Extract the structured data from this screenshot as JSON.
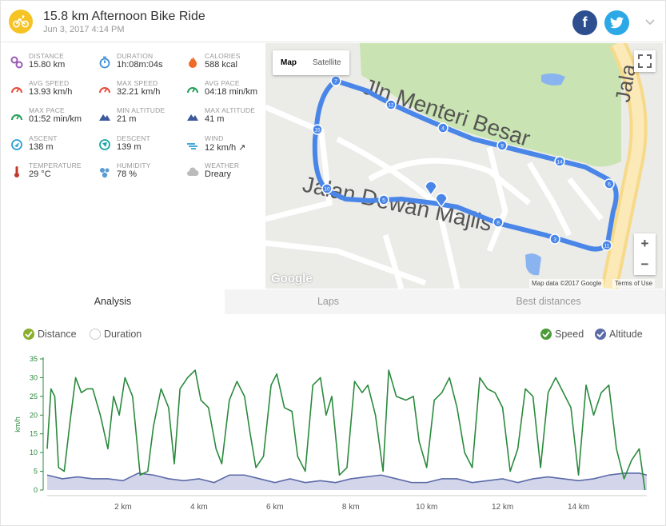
{
  "header": {
    "title": "15.8 km Afternoon Bike Ride",
    "subtitle": "Jun 3, 2017 4:14 PM",
    "facebook_label": "f"
  },
  "stats": [
    {
      "label": "DISTANCE",
      "value": "15.80 km",
      "icon": "distance-icon",
      "color": "#9b59b6"
    },
    {
      "label": "DURATION",
      "value": "1h:08m:04s",
      "icon": "stopwatch-icon",
      "color": "#3b8dd8"
    },
    {
      "label": "CALORIES",
      "value": "588 kcal",
      "icon": "flame-icon",
      "color": "#f06a2a"
    },
    {
      "label": "AVG SPEED",
      "value": "13.93 km/h",
      "icon": "speedometer-icon",
      "color": "#e74c3c"
    },
    {
      "label": "MAX SPEED",
      "value": "32.21 km/h",
      "icon": "speedometer-icon",
      "color": "#e74c3c"
    },
    {
      "label": "AVG PACE",
      "value": "04:18 min/km",
      "icon": "gauge-icon",
      "color": "#27a05a"
    },
    {
      "label": "MAX PACE",
      "value": "01:52 min/km",
      "icon": "gauge-icon",
      "color": "#27a05a"
    },
    {
      "label": "MIN ALTITUDE",
      "value": "21 m",
      "icon": "mountain-icon",
      "color": "#3c5a9a"
    },
    {
      "label": "MAX ALTITUDE",
      "value": "41 m",
      "icon": "mountain-icon",
      "color": "#3c5a9a"
    },
    {
      "label": "ASCENT",
      "value": "138 m",
      "icon": "compass-up-icon",
      "color": "#2a9fd6"
    },
    {
      "label": "DESCENT",
      "value": "139 m",
      "icon": "compass-down-icon",
      "color": "#1aa5a5"
    },
    {
      "label": "WIND",
      "value": "12 km/h ↗",
      "icon": "wind-icon",
      "color": "#2a9fd6"
    },
    {
      "label": "TEMPERATURE",
      "value": "29 °C",
      "icon": "thermometer-icon",
      "color": "#c0392b"
    },
    {
      "label": "HUMIDITY",
      "value": "78 %",
      "icon": "droplets-icon",
      "color": "#5b9bd5"
    },
    {
      "label": "WEATHER",
      "value": "Dreary",
      "icon": "cloud-icon",
      "color": "#bbbbbb"
    }
  ],
  "map": {
    "map_label": "Map",
    "satellite_label": "Satellite",
    "google_label": "Google",
    "map_data": "Map data ©2017 Google",
    "terms": "Terms of Use",
    "zoom_in": "+",
    "zoom_out": "−",
    "street_1": "Jln Menteri Besar",
    "street_2": "Jalan Dewan Majlis",
    "street_3": "Jala",
    "markers": [
      "7",
      "12",
      "4",
      "9",
      "14",
      "6",
      "11",
      "3",
      "8",
      "5",
      "10",
      "15"
    ]
  },
  "tabs": [
    {
      "label": "Analysis",
      "active": true
    },
    {
      "label": "Laps",
      "active": false
    },
    {
      "label": "Best distances",
      "active": false
    }
  ],
  "chart_toggles": {
    "distance": "Distance",
    "duration": "Duration",
    "speed": "Speed",
    "altitude": "Altitude"
  },
  "chart_data": {
    "type": "line",
    "ylabel": "km/h",
    "xlabel": "",
    "ylim": [
      0,
      35
    ],
    "xlim": [
      0,
      15.8
    ],
    "yticks": [
      0,
      5,
      10,
      15,
      20,
      25,
      30,
      35
    ],
    "xticks": [
      2,
      4,
      6,
      8,
      10,
      12,
      14
    ],
    "xtick_suffix": " km",
    "colors": {
      "speed": "#2a8a3c",
      "altitude_line": "#5b6aa8",
      "altitude_fill": "#d3d6ea"
    },
    "series": [
      {
        "name": "Speed",
        "x": [
          0,
          0.1,
          0.2,
          0.3,
          0.45,
          0.6,
          0.75,
          0.9,
          1.05,
          1.2,
          1.4,
          1.6,
          1.75,
          1.9,
          2.05,
          2.25,
          2.45,
          2.65,
          2.8,
          3.0,
          3.2,
          3.35,
          3.5,
          3.7,
          3.9,
          4.05,
          4.25,
          4.45,
          4.6,
          4.8,
          5.0,
          5.2,
          5.35,
          5.5,
          5.7,
          5.9,
          6.05,
          6.25,
          6.45,
          6.6,
          6.8,
          7.0,
          7.2,
          7.35,
          7.5,
          7.7,
          7.9,
          8.1,
          8.3,
          8.45,
          8.65,
          8.85,
          9.0,
          9.2,
          9.45,
          9.65,
          9.8,
          10.0,
          10.2,
          10.4,
          10.6,
          10.8,
          11.0,
          11.2,
          11.4,
          11.6,
          11.8,
          12.0,
          12.2,
          12.4,
          12.6,
          12.8,
          13.0,
          13.2,
          13.4,
          13.6,
          13.8,
          14.0,
          14.2,
          14.4,
          14.6,
          14.8,
          15.0,
          15.2,
          15.4,
          15.6,
          15.75
        ],
        "values": [
          11,
          27,
          25,
          6,
          5,
          18,
          30,
          26,
          27,
          27,
          20,
          11,
          25,
          20,
          30,
          25,
          4,
          5,
          17,
          27,
          22,
          7,
          27,
          30,
          32,
          24,
          22,
          11,
          7,
          24,
          29,
          25,
          15,
          6,
          9,
          28,
          31,
          22,
          21,
          9,
          5,
          28,
          30,
          20,
          25,
          4,
          6,
          29,
          26,
          28,
          20,
          5,
          32,
          25,
          24,
          25,
          13,
          6,
          24,
          26,
          30,
          22,
          10,
          6,
          30,
          27,
          26,
          22,
          5,
          11,
          27,
          25,
          6,
          26,
          30,
          26,
          22,
          4,
          28,
          20,
          26,
          28,
          11,
          3,
          8,
          11,
          0
        ],
        "color": "#2a8a3c"
      },
      {
        "name": "Altitude",
        "x": [
          0,
          0.4,
          0.8,
          1.2,
          1.6,
          2.0,
          2.4,
          2.8,
          3.2,
          3.6,
          4.0,
          4.4,
          4.8,
          5.2,
          5.6,
          6.0,
          6.4,
          6.8,
          7.2,
          7.6,
          8.0,
          8.4,
          8.8,
          9.2,
          9.6,
          10.0,
          10.4,
          10.8,
          11.2,
          11.6,
          12.0,
          12.4,
          12.8,
          13.2,
          13.6,
          14.0,
          14.4,
          14.8,
          15.2,
          15.6,
          15.8
        ],
        "values": [
          4,
          3,
          3.5,
          3,
          3,
          2.5,
          4.5,
          4,
          3,
          2.5,
          3,
          2,
          4,
          4,
          3,
          2,
          3,
          2,
          2.5,
          2,
          3,
          3.5,
          4,
          3,
          2,
          2,
          3,
          3,
          2,
          2.5,
          3,
          2,
          3,
          3.5,
          3,
          2.5,
          3,
          4,
          4.5,
          4.5,
          4
        ],
        "color": "#5b6aa8"
      }
    ]
  }
}
